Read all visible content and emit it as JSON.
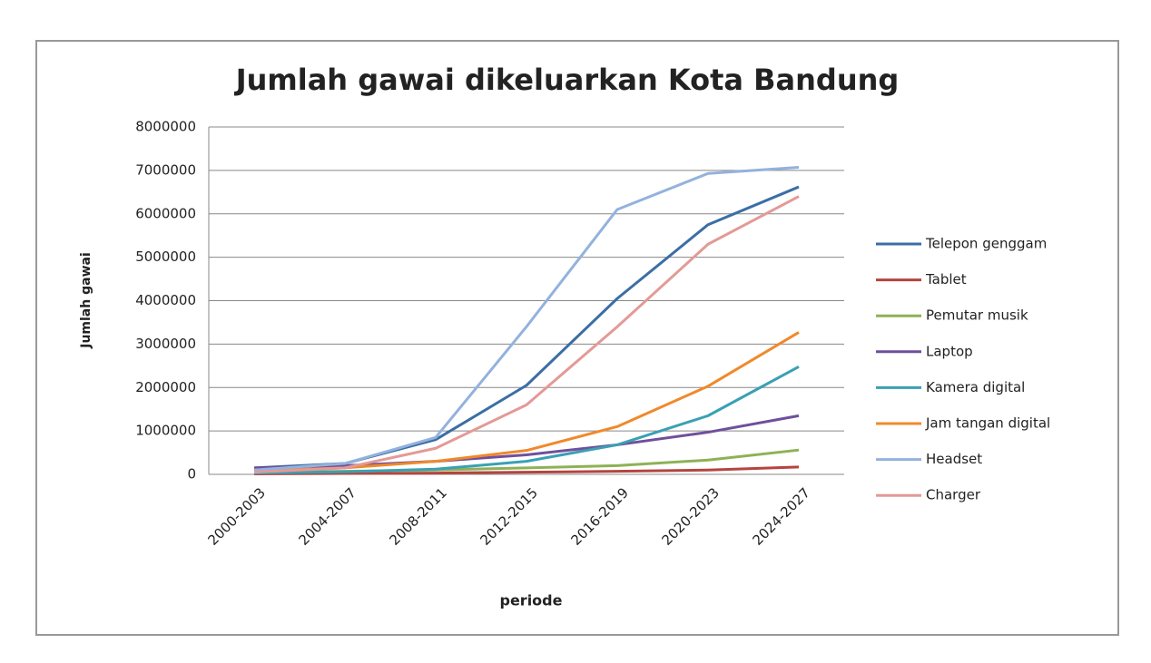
{
  "chart_data": {
    "type": "line",
    "title": "Jumlah gawai dikeluarkan Kota Bandung",
    "x_label": "periode",
    "y_label": "Jumlah gawai",
    "categories": [
      "2000-2003",
      "2004-2007",
      "2008-2011",
      "2012-2015",
      "2016-2019",
      "2020-2023",
      "2024-2027"
    ],
    "ylim": [
      0,
      8000000
    ],
    "yticks": [
      0,
      1000000,
      2000000,
      3000000,
      4000000,
      5000000,
      6000000,
      7000000,
      8000000
    ],
    "grid": true,
    "legend": "right",
    "series": [
      {
        "name": "Telepon genggam",
        "color": "#3b6ea5",
        "values": [
          150000,
          250000,
          800000,
          2050000,
          4050000,
          5750000,
          6620000
        ]
      },
      {
        "name": "Tablet",
        "color": "#b5443f",
        "values": [
          10000,
          20000,
          30000,
          50000,
          70000,
          100000,
          170000
        ]
      },
      {
        "name": "Pemutar musik",
        "color": "#8db255",
        "values": [
          50000,
          70000,
          100000,
          150000,
          200000,
          330000,
          560000
        ]
      },
      {
        "name": "Laptop",
        "color": "#6f4f9c",
        "values": [
          150000,
          200000,
          300000,
          450000,
          680000,
          970000,
          1350000
        ]
      },
      {
        "name": "Kamera digital",
        "color": "#3aa0b4",
        "values": [
          30000,
          60000,
          120000,
          300000,
          680000,
          1350000,
          2480000
        ]
      },
      {
        "name": "Jam tangan digital",
        "color": "#f0892b",
        "values": [
          80000,
          150000,
          300000,
          550000,
          1100000,
          2030000,
          3270000
        ]
      },
      {
        "name": "Headset",
        "color": "#93b2dd",
        "values": [
          100000,
          250000,
          850000,
          3400000,
          6100000,
          6930000,
          7070000
        ]
      },
      {
        "name": "Charger",
        "color": "#e39a96",
        "values": [
          50000,
          150000,
          600000,
          1600000,
          3400000,
          5300000,
          6400000
        ]
      }
    ]
  }
}
